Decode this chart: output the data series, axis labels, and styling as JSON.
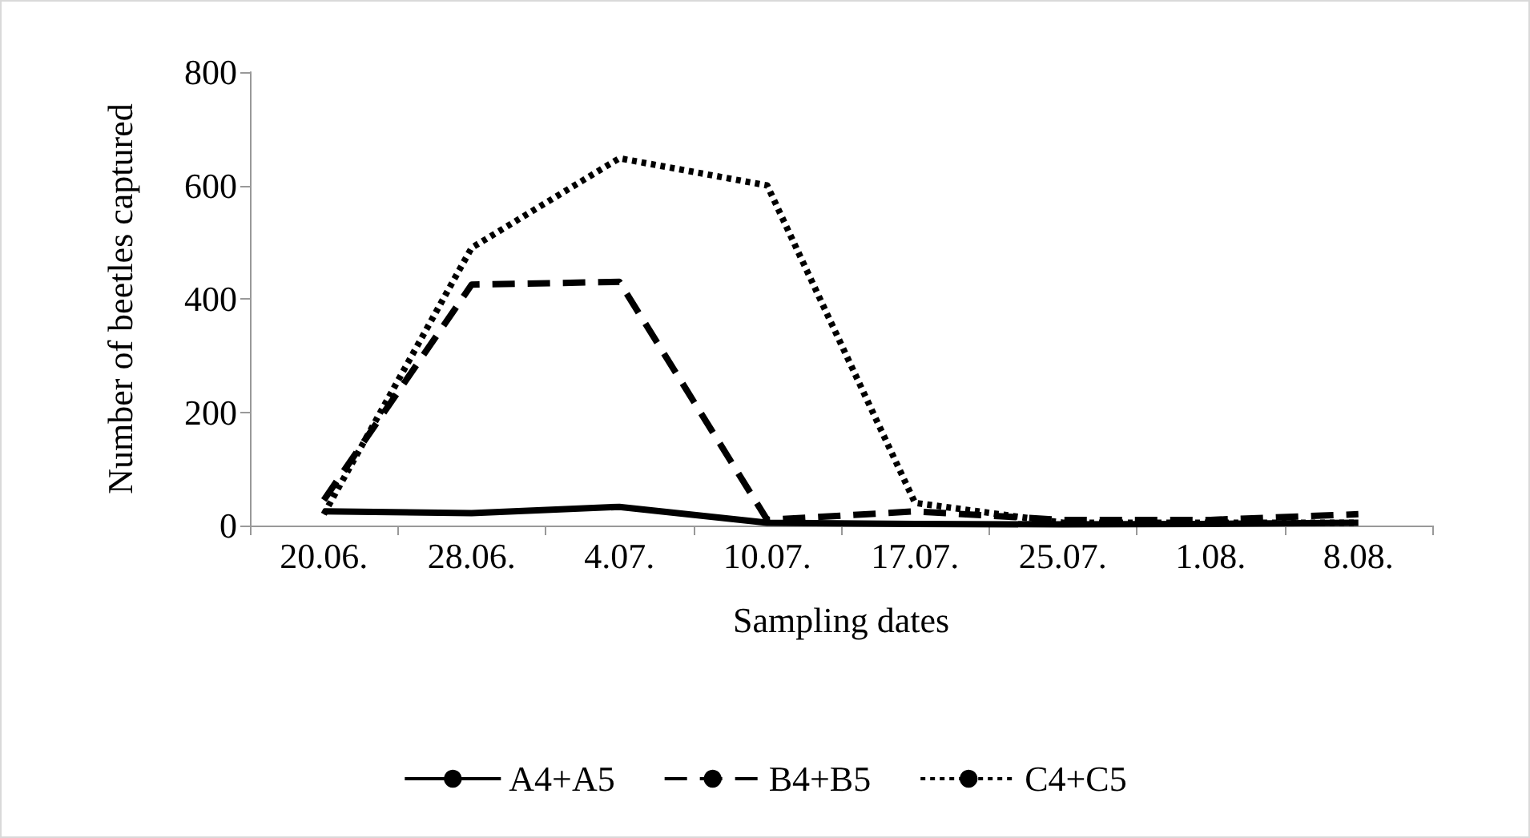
{
  "chart_data": {
    "type": "line",
    "xlabel": "Sampling dates",
    "ylabel": "Number of beetles captured",
    "categories": [
      "20.06.",
      "28.06.",
      "4.07.",
      "10.07.",
      "17.07.",
      "25.07.",
      "1.08.",
      "8.08."
    ],
    "series": [
      {
        "name": "A4+A5",
        "color": "#000000",
        "line_style": "solid",
        "values": [
          25,
          22,
          33,
          5,
          3,
          2,
          3,
          5
        ]
      },
      {
        "name": "B4+B5",
        "color": "#000000",
        "line_style": "dashed",
        "values": [
          45,
          425,
          430,
          10,
          25,
          10,
          10,
          20
        ]
      },
      {
        "name": "C4+C5",
        "color": "#000000",
        "line_style": "dotted",
        "values": [
          20,
          490,
          648,
          600,
          40,
          5,
          5,
          5
        ]
      }
    ],
    "ylim": [
      0,
      800
    ],
    "yticks": [
      0,
      200,
      400,
      600,
      800
    ],
    "grid": false,
    "legend": "bottom",
    "marker": "none"
  }
}
